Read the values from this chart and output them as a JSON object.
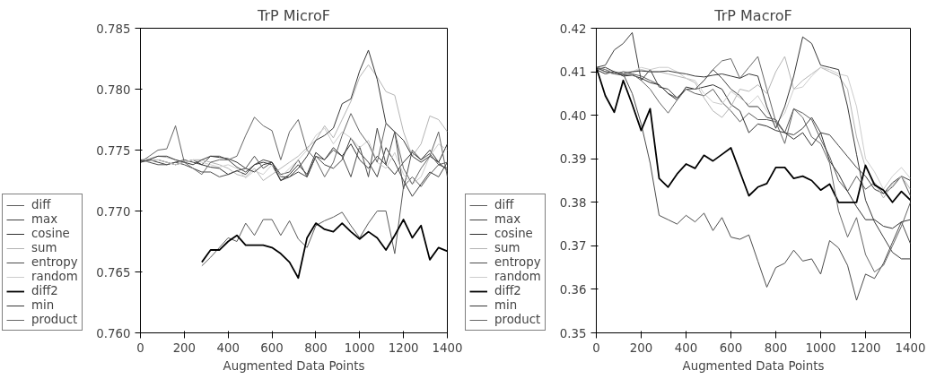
{
  "chart_data": [
    {
      "type": "line",
      "title": "TrP MicroF",
      "xlabel": "Augmented Data Points",
      "xlim": [
        0,
        1400
      ],
      "xticks": [
        0,
        200,
        400,
        600,
        800,
        1000,
        1200,
        1400
      ],
      "ylim": [
        0.76,
        0.785
      ],
      "yticks": [
        {
          "value": 0.76,
          "label": "0.760"
        },
        {
          "value": 0.765,
          "label": "0.765"
        },
        {
          "value": 0.77,
          "label": "0.770"
        },
        {
          "value": 0.775,
          "label": "0.775"
        },
        {
          "value": 0.78,
          "label": "0.780"
        },
        {
          "value": 0.785,
          "label": "0.785"
        }
      ],
      "grid": false,
      "legend": "left",
      "marker": "none",
      "line_style": "solid",
      "x": [
        0,
        40,
        80,
        120,
        160,
        200,
        240,
        280,
        320,
        360,
        400,
        440,
        480,
        520,
        560,
        600,
        640,
        680,
        720,
        760,
        800,
        840,
        880,
        920,
        960,
        1000,
        1040,
        1080,
        1120,
        1160,
        1200,
        1240,
        1280,
        1320,
        1360,
        1400
      ],
      "series": [
        {
          "name": "diff",
          "color": "#5a5a5a",
          "values": [
            null,
            null,
            null,
            null,
            null,
            null,
            null,
            0.7655,
            0.7662,
            0.767,
            0.7678,
            0.7675,
            0.769,
            0.768,
            0.7693,
            0.7693,
            0.768,
            0.7692,
            0.7677,
            0.767,
            0.7688,
            0.7692,
            0.7695,
            0.7699,
            0.7688,
            0.7678,
            0.769,
            0.77,
            0.77,
            0.7665,
            0.772,
            0.7728,
            0.772,
            0.773,
            0.7738,
            0.774
          ]
        },
        {
          "name": "max",
          "color": "#404040",
          "values": [
            0.774,
            0.7742,
            0.774,
            0.7738,
            0.774,
            0.7742,
            0.774,
            0.7738,
            0.7745,
            0.7745,
            0.7742,
            0.7736,
            0.7732,
            0.7738,
            0.7742,
            0.774,
            0.7728,
            0.7728,
            0.7732,
            0.7728,
            0.7745,
            0.7738,
            0.7735,
            0.7742,
            0.776,
            0.7748,
            0.774,
            0.7728,
            0.7752,
            0.774,
            0.7725,
            0.7712,
            0.7722,
            0.7732,
            0.7728,
            0.774
          ]
        },
        {
          "name": "cosine",
          "color": "#303030",
          "values": [
            0.7741,
            0.7741,
            0.7742,
            0.774,
            0.7738,
            0.774,
            0.7742,
            0.7738,
            0.7736,
            0.7735,
            0.773,
            0.7733,
            0.773,
            0.7738,
            0.774,
            0.7738,
            0.7725,
            0.773,
            0.7738,
            0.773,
            0.7748,
            0.7742,
            0.7752,
            0.7745,
            0.7755,
            0.7742,
            0.7735,
            0.7745,
            0.7738,
            0.773,
            0.774,
            0.7748,
            0.7742,
            0.775,
            0.774,
            0.7755
          ]
        },
        {
          "name": "sum",
          "color": "#b4b4b4",
          "values": [
            0.7742,
            0.7743,
            0.7745,
            0.7744,
            0.7742,
            0.774,
            0.7742,
            0.7742,
            0.774,
            0.7738,
            0.7735,
            0.773,
            0.7728,
            0.7735,
            0.7725,
            0.773,
            0.7735,
            0.774,
            0.7745,
            0.7752,
            0.7758,
            0.777,
            0.776,
            0.7775,
            0.779,
            0.781,
            0.782,
            0.781,
            0.7798,
            0.7795,
            0.7765,
            0.7745,
            0.7755,
            0.7778,
            0.7775,
            0.7765
          ]
        },
        {
          "name": "entropy",
          "color": "#4c4c4c",
          "values": [
            0.7742,
            0.774,
            0.7738,
            0.7738,
            0.774,
            0.7738,
            0.7735,
            0.7732,
            0.7732,
            0.7728,
            0.773,
            0.7733,
            0.7735,
            0.7745,
            0.7735,
            0.774,
            0.773,
            0.7732,
            0.7742,
            0.7728,
            0.7745,
            0.7742,
            0.775,
            0.7745,
            0.7728,
            0.7753,
            0.7728,
            0.7768,
            0.7738,
            0.7765,
            0.7718,
            0.775,
            0.7742,
            0.7747,
            0.7738,
            0.7735
          ]
        },
        {
          "name": "random",
          "color": "#cccccc",
          "values": [
            0.774,
            0.7741,
            0.7742,
            0.774,
            0.7738,
            0.774,
            0.7742,
            0.774,
            0.7738,
            0.7736,
            0.7738,
            0.7735,
            0.7727,
            0.7733,
            0.773,
            0.7738,
            0.7728,
            0.7735,
            0.7742,
            0.775,
            0.7762,
            0.7768,
            0.7755,
            0.7765,
            0.776,
            0.7752,
            0.7758,
            0.774,
            0.7735,
            0.7748,
            0.773,
            0.7722,
            0.7728,
            0.7745,
            0.7755,
            0.775
          ]
        },
        {
          "name": "diff2",
          "color": "#000000",
          "values": [
            null,
            null,
            null,
            null,
            null,
            null,
            null,
            0.7658,
            0.7668,
            0.7668,
            0.7675,
            0.768,
            0.7672,
            0.7672,
            0.7672,
            0.767,
            0.7665,
            0.7658,
            0.7645,
            0.7678,
            0.769,
            0.7685,
            0.7683,
            0.769,
            0.7683,
            0.7677,
            0.7683,
            0.7678,
            0.7668,
            0.768,
            0.7693,
            0.7678,
            0.7688,
            0.766,
            0.767,
            0.7667
          ]
        },
        {
          "name": "min",
          "color": "#383838",
          "values": [
            0.774,
            0.7742,
            0.7745,
            0.7745,
            0.7742,
            0.774,
            0.7738,
            0.7742,
            0.7745,
            0.7744,
            0.7743,
            0.774,
            0.7735,
            0.7732,
            0.7738,
            0.774,
            0.7725,
            0.7728,
            0.7735,
            0.7745,
            0.7758,
            0.7762,
            0.7768,
            0.7788,
            0.7792,
            0.7815,
            0.7832,
            0.7808,
            0.7772,
            0.7765,
            0.7758,
            0.7745,
            0.774,
            0.7745,
            0.774,
            0.7733
          ]
        },
        {
          "name": "product",
          "color": "#666666",
          "values": [
            0.774,
            0.7745,
            0.775,
            0.7751,
            0.777,
            0.774,
            0.7735,
            0.773,
            0.774,
            0.7742,
            0.7742,
            0.7745,
            0.7762,
            0.7777,
            0.777,
            0.7766,
            0.7742,
            0.7765,
            0.7775,
            0.775,
            0.7742,
            0.7728,
            0.774,
            0.7762,
            0.778,
            0.7765,
            0.7755,
            0.774,
            0.7772,
            0.7765,
            0.7735,
            0.7722,
            0.7735,
            0.7745,
            0.7765,
            0.7728
          ]
        }
      ]
    },
    {
      "type": "line",
      "title": "TrP MacroF",
      "xlabel": "Augmented Data Points",
      "xlim": [
        0,
        1400
      ],
      "xticks": [
        0,
        200,
        400,
        600,
        800,
        1000,
        1200,
        1400
      ],
      "ylim": [
        0.35,
        0.42
      ],
      "yticks": [
        0.35,
        0.36,
        0.37,
        0.38,
        0.39,
        {
          "value": 0.4,
          "label": "0.40"
        },
        0.41,
        0.42
      ],
      "grid": false,
      "legend": "left",
      "marker": "none",
      "line_style": "solid",
      "x": [
        0,
        40,
        80,
        120,
        160,
        200,
        240,
        280,
        320,
        360,
        400,
        440,
        480,
        520,
        560,
        600,
        640,
        680,
        720,
        760,
        800,
        840,
        880,
        920,
        960,
        1000,
        1040,
        1080,
        1120,
        1160,
        1200,
        1240,
        1280,
        1320,
        1360,
        1400
      ],
      "series": [
        {
          "name": "diff",
          "color": "#5a5a5a",
          "values": [
            0.411,
            0.41,
            0.4095,
            0.4092,
            0.4095,
            0.409,
            0.408,
            0.407,
            0.405,
            0.404,
            0.406,
            0.405,
            0.4045,
            0.406,
            0.403,
            0.401,
            0.3985,
            0.4005,
            0.399,
            0.399,
            0.3985,
            0.396,
            0.4015,
            0.4005,
            0.399,
            0.3945,
            0.3905,
            0.385,
            0.3825,
            0.386,
            0.383,
            0.3845,
            0.382,
            0.3835,
            0.386,
            0.3815
          ]
        },
        {
          "name": "max",
          "color": "#404040",
          "values": [
            0.411,
            0.4115,
            0.415,
            0.4165,
            0.419,
            0.408,
            0.4105,
            0.4065,
            0.406,
            0.404,
            0.406,
            0.406,
            0.408,
            0.4105,
            0.4085,
            0.406,
            0.4045,
            0.402,
            0.402,
            0.3995,
            0.399,
            0.396,
            0.3955,
            0.397,
            0.3995,
            0.396,
            0.3955,
            0.393,
            0.3905,
            0.388,
            0.386,
            0.383,
            0.382,
            0.3845,
            0.386,
            0.385
          ]
        },
        {
          "name": "cosine",
          "color": "#303030",
          "values": [
            0.4105,
            0.4095,
            0.41,
            0.409,
            0.4092,
            0.4085,
            0.4075,
            0.407,
            0.405,
            0.4035,
            0.4065,
            0.406,
            0.4065,
            0.407,
            0.406,
            0.4025,
            0.401,
            0.396,
            0.398,
            0.3975,
            0.3965,
            0.396,
            0.3945,
            0.396,
            0.393,
            0.396,
            0.3895,
            0.3865,
            0.3825,
            0.379,
            0.376,
            0.376,
            0.3745,
            0.374,
            0.3755,
            0.376
          ]
        },
        {
          "name": "sum",
          "color": "#b4b4b4",
          "values": [
            0.411,
            0.41,
            0.4095,
            0.41,
            0.41,
            0.4105,
            0.41,
            0.41,
            0.4095,
            0.409,
            0.4085,
            0.4075,
            0.404,
            0.401,
            0.3995,
            0.402,
            0.406,
            0.4055,
            0.407,
            0.405,
            0.41,
            0.4135,
            0.406,
            0.408,
            0.4095,
            0.411,
            0.41,
            0.409,
            0.406,
            0.395,
            0.388,
            0.3845,
            0.381,
            0.384,
            0.386,
            0.383
          ]
        },
        {
          "name": "entropy",
          "color": "#4c4c4c",
          "values": [
            0.411,
            0.41,
            0.4098,
            0.4095,
            0.405,
            0.398,
            0.389,
            0.377,
            0.376,
            0.375,
            0.377,
            0.3755,
            0.3775,
            0.3735,
            0.3765,
            0.372,
            0.3715,
            0.3725,
            0.3665,
            0.3605,
            0.365,
            0.366,
            0.369,
            0.3665,
            0.367,
            0.3635,
            0.3712,
            0.3695,
            0.3655,
            0.3575,
            0.3635,
            0.3625,
            0.366,
            0.3708,
            0.3755,
            0.3705
          ]
        },
        {
          "name": "random",
          "color": "#cccccc",
          "values": [
            0.411,
            0.4105,
            0.41,
            0.4095,
            0.41,
            0.411,
            0.4105,
            0.411,
            0.411,
            0.41,
            0.4085,
            0.408,
            0.405,
            0.403,
            0.4025,
            0.4055,
            0.404,
            0.4025,
            0.4045,
            0.401,
            0.398,
            0.4005,
            0.406,
            0.4065,
            0.409,
            0.411,
            0.4105,
            0.4095,
            0.409,
            0.402,
            0.39,
            0.387,
            0.383,
            0.386,
            0.388,
            0.3855
          ]
        },
        {
          "name": "diff2",
          "color": "#000000",
          "values": [
            0.411,
            0.4045,
            0.4007,
            0.408,
            0.4025,
            0.3965,
            0.4015,
            0.3855,
            0.3835,
            0.3865,
            0.3888,
            0.3878,
            0.3908,
            0.3895,
            0.391,
            0.3925,
            0.387,
            0.3815,
            0.3835,
            0.3843,
            0.388,
            0.388,
            0.3855,
            0.386,
            0.385,
            0.3828,
            0.3842,
            0.38,
            0.38,
            0.38,
            0.3885,
            0.384,
            0.3828,
            0.38,
            0.3825,
            0.3805
          ]
        },
        {
          "name": "min",
          "color": "#383838",
          "values": [
            0.4105,
            0.411,
            0.41,
            0.4095,
            0.41,
            0.4102,
            0.41,
            0.41,
            0.4102,
            0.4098,
            0.4095,
            0.409,
            0.4088,
            0.4092,
            0.4095,
            0.409,
            0.4085,
            0.4095,
            0.409,
            0.402,
            0.397,
            0.402,
            0.409,
            0.418,
            0.4165,
            0.4115,
            0.411,
            0.4105,
            0.402,
            0.391,
            0.3805,
            0.3755,
            0.372,
            0.3685,
            0.367,
            0.367
          ]
        },
        {
          "name": "product",
          "color": "#666666",
          "values": [
            0.411,
            0.4105,
            0.4095,
            0.41,
            0.4095,
            0.408,
            0.406,
            0.403,
            0.4005,
            0.4035,
            0.406,
            0.406,
            0.408,
            0.4105,
            0.4125,
            0.413,
            0.4085,
            0.411,
            0.4135,
            0.406,
            0.3985,
            0.3935,
            0.4015,
            0.3995,
            0.395,
            0.3935,
            0.389,
            0.378,
            0.372,
            0.3765,
            0.368,
            0.364,
            0.3655,
            0.37,
            0.3745,
            0.38
          ]
        }
      ]
    }
  ]
}
